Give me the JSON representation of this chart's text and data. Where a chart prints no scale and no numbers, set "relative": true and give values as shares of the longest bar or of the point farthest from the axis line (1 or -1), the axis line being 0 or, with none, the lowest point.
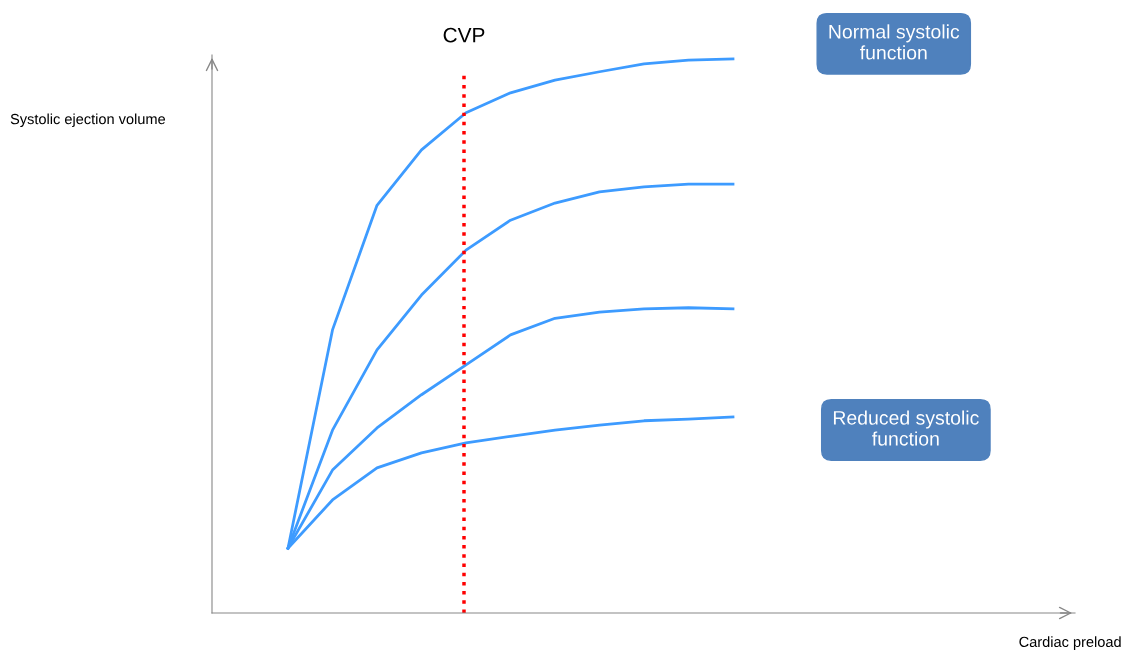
{
  "chart_data": {
    "type": "line",
    "relative": true,
    "categories": [
      null,
      null,
      null,
      null,
      null,
      null,
      null,
      null,
      null,
      null,
      null
    ],
    "series": [
      {
        "color": "#3d9bff",
        "values": [
          0.117,
          0.511,
          0.736,
          0.836,
          0.903,
          0.939,
          0.962,
          0.977,
          0.991,
          0.998,
          1.0
        ]
      },
      {
        "color": "#3d9bff",
        "values": [
          0.117,
          0.33,
          0.475,
          0.574,
          0.655,
          0.709,
          0.74,
          0.76,
          0.769,
          0.774,
          0.774
        ]
      },
      {
        "color": "#3d9bff",
        "values": [
          0.117,
          0.258,
          0.334,
          0.394,
          0.448,
          0.502,
          0.532,
          0.543,
          0.549,
          0.551,
          0.549
        ]
      },
      {
        "color": "#3d9bff",
        "values": [
          0.117,
          0.204,
          0.262,
          0.289,
          0.307,
          0.319,
          0.33,
          0.339,
          0.347,
          0.35,
          0.354
        ]
      }
    ],
    "annotations": [
      "Normal systolic function",
      "Reduced systolic function",
      "CVP",
      "Systolic ejection volume",
      "Cardiac preload"
    ],
    "marker": "none",
    "line_style": "solid",
    "legend": false
  }
}
